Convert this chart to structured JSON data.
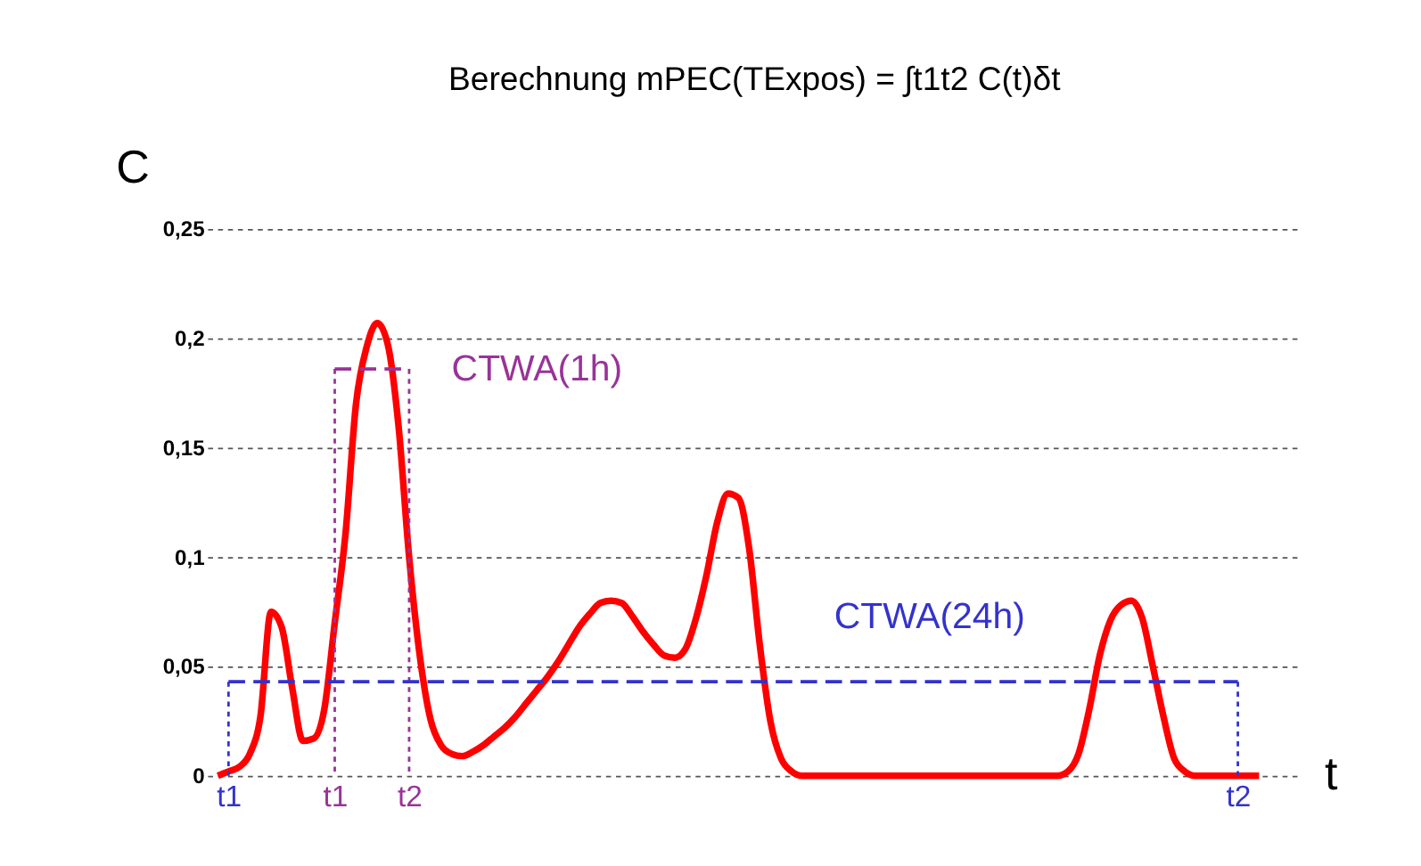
{
  "chart_data": {
    "type": "line",
    "title": "Berechnung   mPEC(TExpos) = ∫t1t2 C(t)δt",
    "xlabel": "t",
    "ylabel": "C",
    "categories": [
      null,
      null,
      "t1",
      null,
      null,
      null,
      null,
      null,
      null,
      null,
      null,
      null,
      "t1",
      null,
      null,
      null,
      null,
      null,
      null,
      "t2",
      null,
      null,
      null,
      null,
      null,
      null,
      null,
      null,
      null,
      null,
      null,
      null,
      null,
      null,
      null,
      null,
      null,
      null,
      null,
      null,
      null,
      null,
      null,
      null,
      null,
      null,
      null,
      null,
      null,
      null,
      null,
      null,
      null,
      null,
      null,
      null,
      null,
      null,
      null,
      null,
      null,
      null,
      null,
      null,
      null,
      null,
      null,
      null,
      null,
      null,
      null,
      null,
      null,
      null,
      null,
      null,
      null,
      null,
      null,
      null,
      null,
      null,
      null,
      null,
      null,
      null,
      null,
      null,
      null,
      null,
      null,
      null,
      null,
      null,
      null,
      null,
      null,
      "t2",
      null,
      null,
      null,
      null,
      null,
      null
    ],
    "ylim": [
      0,
      0.25
    ],
    "yticks": [
      {
        "value": 0,
        "label": "0"
      },
      {
        "value": 0.05,
        "label": "0,05"
      },
      {
        "value": 0.1,
        "label": "0,1"
      },
      {
        "value": 0.15,
        "label": "0,15"
      },
      {
        "value": 0.2,
        "label": "0,2"
      },
      {
        "value": 0.25,
        "label": "0,25"
      }
    ],
    "grid": "y",
    "series": [
      {
        "color": "#ff0000",
        "line_style": "solid",
        "values": [
          null,
          0,
          0.002,
          0.004,
          0.01,
          0.027,
          0.075,
          0.068,
          0.04,
          0.016,
          0.017,
          0.03,
          0.07,
          0.11,
          0.17,
          0.196,
          0.207,
          0.197,
          0.16,
          0.1,
          0.055,
          0.026,
          0.014,
          0.01,
          0.009,
          0.011,
          0.014,
          0.018,
          0.022,
          0.027,
          0.033,
          0.039,
          0.045,
          0.052,
          0.06,
          0.068,
          0.074,
          0.079,
          0.08,
          0.079,
          0.073,
          0.066,
          0.06,
          0.055,
          0.054,
          0.058,
          0.072,
          0.092,
          0.116,
          0.129,
          0.127,
          0.104,
          0.06,
          0.025,
          0.008,
          0.002,
          0,
          0,
          0,
          0,
          0,
          0,
          0,
          0,
          0,
          0,
          0,
          0,
          0,
          0,
          0,
          0,
          0,
          0,
          0,
          0,
          0,
          0,
          0,
          0,
          0,
          0.002,
          0.01,
          0.03,
          0.055,
          0.071,
          0.078,
          0.08,
          0.072,
          0.05,
          0.027,
          0.008,
          0.002,
          0,
          0,
          0,
          0,
          0,
          0,
          0,
          null,
          null,
          null,
          null
        ]
      },
      {
        "name": "CTWA(1h)",
        "color": "#993399",
        "line_style": "dashed",
        "values": [
          null,
          null,
          null,
          null,
          null,
          null,
          null,
          null,
          null,
          null,
          null,
          null,
          0.186,
          0.186,
          0.186,
          0.186,
          0.186,
          0.186,
          0.186,
          0.186,
          null,
          null,
          null,
          null,
          null,
          null,
          null,
          null,
          null,
          null,
          null,
          null,
          null,
          null,
          null,
          null,
          null,
          null,
          null,
          null,
          null,
          null,
          null,
          null,
          null,
          null,
          null,
          null,
          null,
          null,
          null,
          null,
          null,
          null,
          null,
          null,
          null,
          null,
          null,
          null,
          null,
          null,
          null,
          null,
          null,
          null,
          null,
          null,
          null,
          null,
          null,
          null,
          null,
          null,
          null,
          null,
          null,
          null,
          null,
          null,
          null,
          null,
          null,
          null,
          null,
          null,
          null,
          null,
          null,
          null,
          null,
          null,
          null,
          null,
          null,
          null,
          null,
          null,
          null,
          null,
          null,
          null,
          null,
          null
        ]
      },
      {
        "name": "CTWA(24h)",
        "color": "#3333cc",
        "line_style": "dashed",
        "values": [
          null,
          null,
          0.043,
          0.043,
          0.043,
          0.043,
          0.043,
          0.043,
          0.043,
          0.043,
          0.043,
          0.043,
          0.043,
          0.043,
          0.043,
          0.043,
          0.043,
          0.043,
          0.043,
          0.043,
          0.043,
          0.043,
          0.043,
          0.043,
          0.043,
          0.043,
          0.043,
          0.043,
          0.043,
          0.043,
          0.043,
          0.043,
          0.043,
          0.043,
          0.043,
          0.043,
          0.043,
          0.043,
          0.043,
          0.043,
          0.043,
          0.043,
          0.043,
          0.043,
          0.043,
          0.043,
          0.043,
          0.043,
          0.043,
          0.043,
          0.043,
          0.043,
          0.043,
          0.043,
          0.043,
          0.043,
          0.043,
          0.043,
          0.043,
          0.043,
          0.043,
          0.043,
          0.043,
          0.043,
          0.043,
          0.043,
          0.043,
          0.043,
          0.043,
          0.043,
          0.043,
          0.043,
          0.043,
          0.043,
          0.043,
          0.043,
          0.043,
          0.043,
          0.043,
          0.043,
          0.043,
          0.043,
          0.043,
          0.043,
          0.043,
          0.043,
          0.043,
          0.043,
          0.043,
          0.043,
          0.043,
          0.043,
          0.043,
          0.043,
          0.043,
          0.043,
          0.043,
          0.043,
          null,
          null,
          null,
          null,
          null,
          null
        ]
      }
    ]
  }
}
